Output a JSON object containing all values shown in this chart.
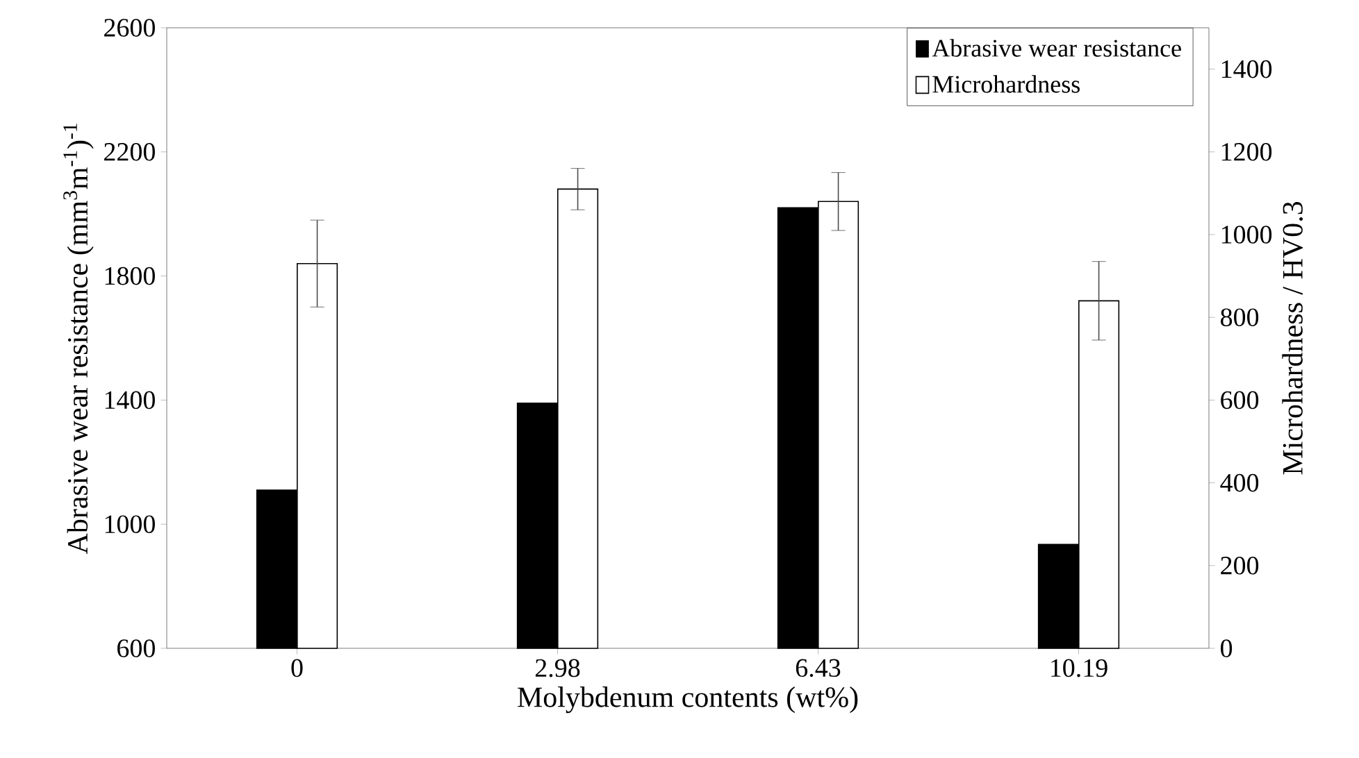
{
  "chart_data": {
    "type": "bar",
    "xlabel": "Molybdenum contents (wt%)",
    "ylabel": "Abrasive wear resistance (mm$^{3}$m$^{-1}$)$^{-1}$",
    "y2label": "Microhardness / HV0.3",
    "categories": [
      "0",
      "2.98",
      "6.43",
      "10.19"
    ],
    "series": [
      {
        "name": "Abrasive wear resistance",
        "color": "#000000",
        "values": [
          1110,
          1390,
          2020,
          935
        ]
      },
      {
        "name": "Microhardness",
        "color": "#ffffff",
        "axis": "y2",
        "values": [
          930,
          1110,
          1080,
          840
        ],
        "errors": [
          105,
          50,
          70,
          95
        ]
      }
    ],
    "ylim": [
      600,
      2600
    ],
    "yticks": [
      600,
      1000,
      1400,
      1800,
      2200,
      2600
    ],
    "y2lim": [
      0,
      1500
    ],
    "y2ticks": [
      0,
      200,
      400,
      600,
      800,
      1000,
      1200,
      1400
    ],
    "legend": "top right",
    "grid": false
  }
}
